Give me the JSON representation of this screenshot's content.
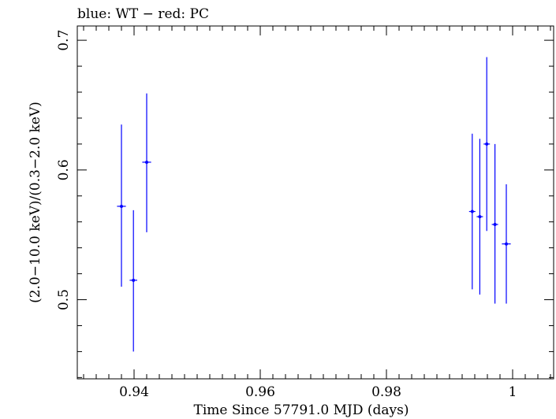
{
  "chart_data": {
    "type": "scatter",
    "title": "blue: WT − red: PC",
    "xlabel": "Time Since 57791.0 MJD (days)",
    "ylabel": "(2.0−10.0 keV)/(0.3−2.0 keV)",
    "xlim": [
      0.931,
      1.0065
    ],
    "ylim": [
      0.439,
      0.711
    ],
    "x_ticks": [
      0.94,
      0.96,
      0.98,
      1.0
    ],
    "x_tick_labels": [
      "0.94",
      "0.96",
      "0.98",
      "1"
    ],
    "y_ticks": [
      0.5,
      0.6,
      0.7
    ],
    "y_tick_labels": [
      "0.5",
      "0.6",
      "0.7"
    ],
    "x_minor_step": 0.002,
    "y_minor_step": 0.02,
    "grid": false,
    "series": [
      {
        "name": "WT",
        "color": "#0000ff",
        "points": [
          {
            "x": 0.938,
            "y": 0.572,
            "xerr": 0.0007,
            "ylo": 0.51,
            "yhi": 0.635
          },
          {
            "x": 0.9399,
            "y": 0.515,
            "xerr": 0.0006,
            "ylo": 0.46,
            "yhi": 0.569
          },
          {
            "x": 0.942,
            "y": 0.606,
            "xerr": 0.0007,
            "ylo": 0.552,
            "yhi": 0.659
          },
          {
            "x": 0.9936,
            "y": 0.568,
            "xerr": 0.0005,
            "ylo": 0.508,
            "yhi": 0.628
          },
          {
            "x": 0.9948,
            "y": 0.564,
            "xerr": 0.0005,
            "ylo": 0.504,
            "yhi": 0.624
          },
          {
            "x": 0.9959,
            "y": 0.62,
            "xerr": 0.0005,
            "ylo": 0.553,
            "yhi": 0.687
          },
          {
            "x": 0.9972,
            "y": 0.558,
            "xerr": 0.0005,
            "ylo": 0.497,
            "yhi": 0.62
          },
          {
            "x": 0.999,
            "y": 0.543,
            "xerr": 0.0007,
            "ylo": 0.497,
            "yhi": 0.589
          }
        ]
      },
      {
        "name": "PC",
        "color": "#ff0000",
        "points": []
      }
    ]
  }
}
